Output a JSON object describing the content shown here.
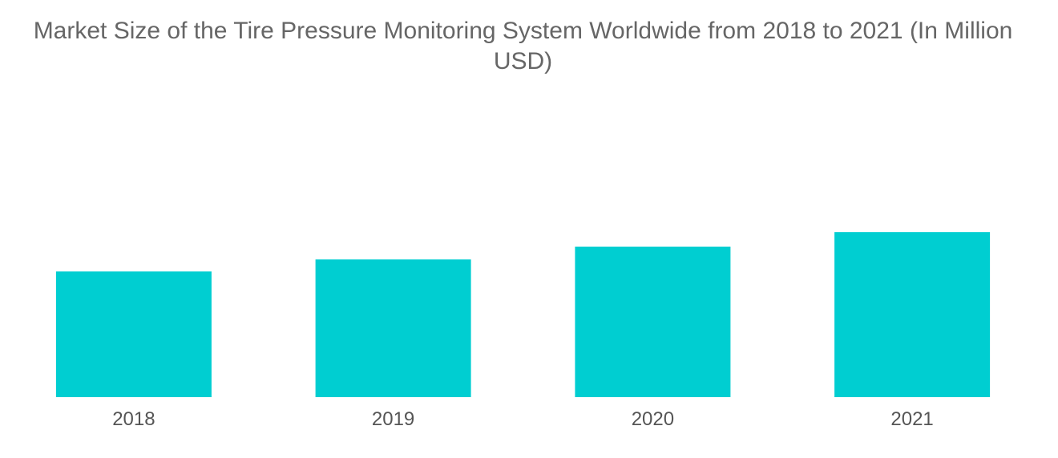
{
  "chart_data": {
    "type": "bar",
    "title": "Market Size of the Tire Pressure Monitoring System Worldwide from 2018 to 2021 (In Million USD)",
    "xlabel": "",
    "ylabel": "",
    "categories": [
      "2018",
      "2019",
      "2020",
      "2021"
    ],
    "series": [
      {
        "values": [
          157,
          172,
          188,
          206
        ]
      }
    ],
    "ylim": [
      0,
      400
    ],
    "grid": false,
    "legend": "none",
    "bar_color": "#00CED1"
  }
}
